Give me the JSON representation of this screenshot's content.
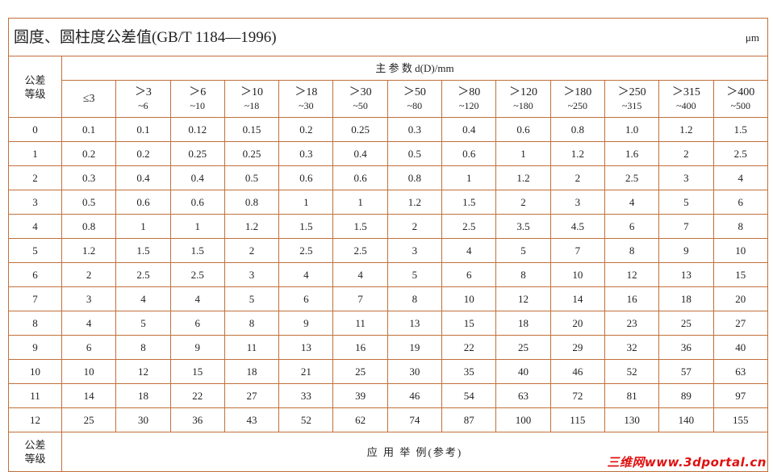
{
  "header": {
    "title": "圆度、圆柱度公差值(GB/T 1184—1996)",
    "unit": "μm"
  },
  "table": {
    "grade_header": "公差等级",
    "param_header": "主 参 数 d(D)/mm",
    "ranges": [
      {
        "top": "≤3"
      },
      {
        "top": "＞3",
        "bottom": "~6"
      },
      {
        "top": "＞6",
        "bottom": "~10"
      },
      {
        "top": "＞10",
        "bottom": "~18"
      },
      {
        "top": "＞18",
        "bottom": "~30"
      },
      {
        "top": "＞30",
        "bottom": "~50"
      },
      {
        "top": "＞50",
        "bottom": "~80"
      },
      {
        "top": "＞80",
        "bottom": "~120"
      },
      {
        "top": "＞120",
        "bottom": "~180"
      },
      {
        "top": "＞180",
        "bottom": "~250"
      },
      {
        "top": "＞250",
        "bottom": "~315"
      },
      {
        "top": "＞315",
        "bottom": "~400"
      },
      {
        "top": "＞400",
        "bottom": "~500"
      }
    ],
    "rows": [
      {
        "grade": "0",
        "values": [
          "0.1",
          "0.1",
          "0.12",
          "0.15",
          "0.2",
          "0.25",
          "0.3",
          "0.4",
          "0.6",
          "0.8",
          "1.0",
          "1.2",
          "1.5"
        ]
      },
      {
        "grade": "1",
        "values": [
          "0.2",
          "0.2",
          "0.25",
          "0.25",
          "0.3",
          "0.4",
          "0.5",
          "0.6",
          "1",
          "1.2",
          "1.6",
          "2",
          "2.5"
        ]
      },
      {
        "grade": "2",
        "values": [
          "0.3",
          "0.4",
          "0.4",
          "0.5",
          "0.6",
          "0.6",
          "0.8",
          "1",
          "1.2",
          "2",
          "2.5",
          "3",
          "4"
        ]
      },
      {
        "grade": "3",
        "values": [
          "0.5",
          "0.6",
          "0.6",
          "0.8",
          "1",
          "1",
          "1.2",
          "1.5",
          "2",
          "3",
          "4",
          "5",
          "6"
        ]
      },
      {
        "grade": "4",
        "values": [
          "0.8",
          "1",
          "1",
          "1.2",
          "1.5",
          "1.5",
          "2",
          "2.5",
          "3.5",
          "4.5",
          "6",
          "7",
          "8"
        ]
      },
      {
        "grade": "5",
        "values": [
          "1.2",
          "1.5",
          "1.5",
          "2",
          "2.5",
          "2.5",
          "3",
          "4",
          "5",
          "7",
          "8",
          "9",
          "10"
        ]
      },
      {
        "grade": "6",
        "values": [
          "2",
          "2.5",
          "2.5",
          "3",
          "4",
          "4",
          "5",
          "6",
          "8",
          "10",
          "12",
          "13",
          "15"
        ]
      },
      {
        "grade": "7",
        "values": [
          "3",
          "4",
          "4",
          "5",
          "6",
          "7",
          "8",
          "10",
          "12",
          "14",
          "16",
          "18",
          "20"
        ]
      },
      {
        "grade": "8",
        "values": [
          "4",
          "5",
          "6",
          "8",
          "9",
          "11",
          "13",
          "15",
          "18",
          "20",
          "23",
          "25",
          "27"
        ]
      },
      {
        "grade": "9",
        "values": [
          "6",
          "8",
          "9",
          "11",
          "13",
          "16",
          "19",
          "22",
          "25",
          "29",
          "32",
          "36",
          "40"
        ]
      },
      {
        "grade": "10",
        "values": [
          "10",
          "12",
          "15",
          "18",
          "21",
          "25",
          "30",
          "35",
          "40",
          "46",
          "52",
          "57",
          "63"
        ]
      },
      {
        "grade": "11",
        "values": [
          "14",
          "18",
          "22",
          "27",
          "33",
          "39",
          "46",
          "54",
          "63",
          "72",
          "81",
          "89",
          "97"
        ]
      },
      {
        "grade": "12",
        "values": [
          "25",
          "30",
          "36",
          "43",
          "52",
          "62",
          "74",
          "87",
          "100",
          "115",
          "130",
          "140",
          "155"
        ]
      }
    ],
    "footer_grade": "公差等级",
    "footer_usage": "应 用 举 例(参考)"
  },
  "watermark": "三维网www.3dportal.cn"
}
